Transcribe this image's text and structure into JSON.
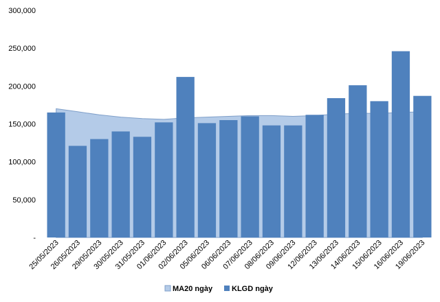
{
  "chart_data": {
    "type": "bar",
    "categories": [
      "25/05/2023",
      "26/05/2023",
      "29/05/2023",
      "30/05/2023",
      "31/05/2023",
      "01/06/2023",
      "02/06/2023",
      "05/06/2023",
      "06/06/2023",
      "07/06/2023",
      "08/06/2023",
      "09/06/2023",
      "12/06/2023",
      "13/06/2023",
      "14/06/2023",
      "15/06/2023",
      "16/06/2023",
      "19/06/2023"
    ],
    "series": [
      {
        "name": "MA20 ngày",
        "type": "area",
        "color": "#B4CBE8",
        "values": [
          170000,
          166000,
          162000,
          159000,
          157000,
          156000,
          158000,
          159000,
          160000,
          161000,
          161000,
          160000,
          161000,
          163000,
          164000,
          164000,
          165000,
          166000
        ]
      },
      {
        "name": "KLGD ngày",
        "type": "bar",
        "color": "#4F81BD",
        "values": [
          165000,
          121000,
          130000,
          140000,
          133000,
          152000,
          212000,
          151000,
          155000,
          160000,
          148000,
          148000,
          162000,
          184000,
          201000,
          180000,
          246000,
          187000
        ]
      }
    ],
    "yticks": [
      "-",
      "50,000",
      "100,000",
      "150,000",
      "200,000",
      "250,000",
      "300,000"
    ],
    "ylim": [
      0,
      300000
    ],
    "title": "",
    "xlabel": "",
    "ylabel": "",
    "grid": false,
    "legend": "bottom"
  }
}
